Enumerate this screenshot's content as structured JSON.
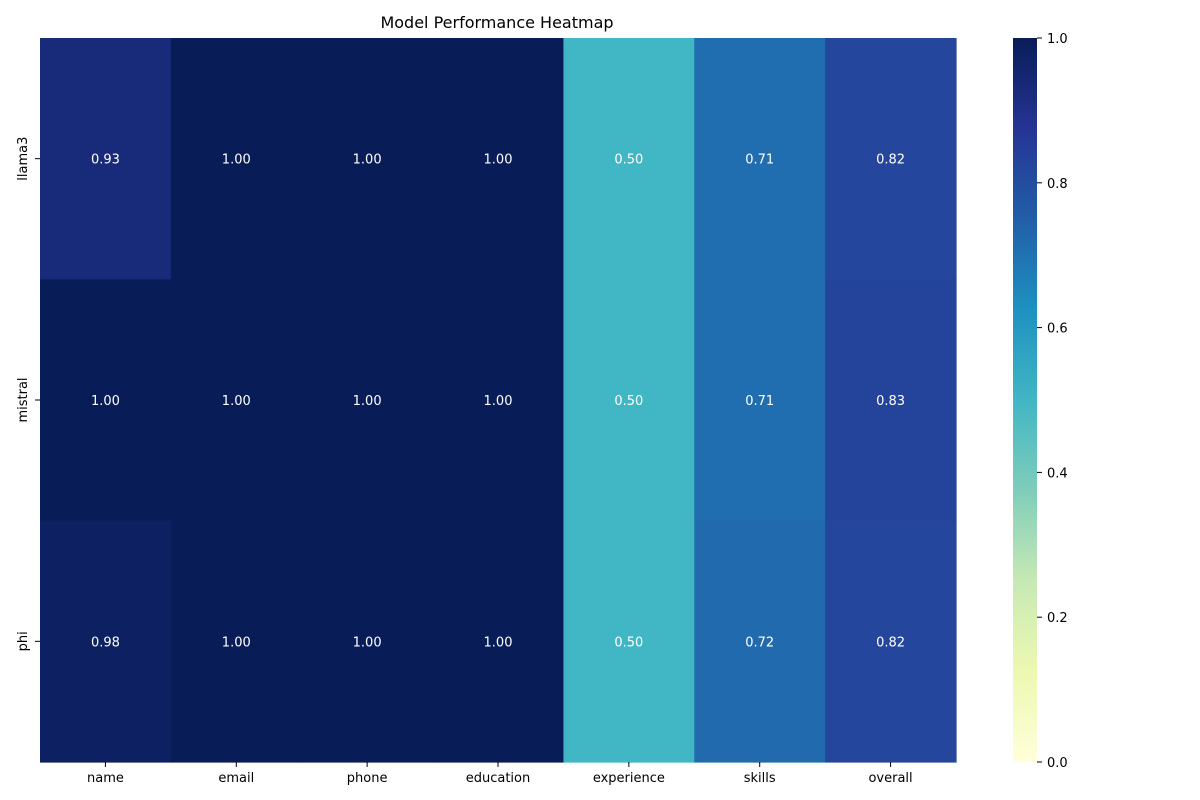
{
  "chart_data": {
    "type": "heatmap",
    "title": "Model Performance Heatmap",
    "xlabel": "",
    "ylabel": "",
    "x_categories": [
      "name",
      "email",
      "phone",
      "education",
      "experience",
      "skills",
      "overall"
    ],
    "y_categories": [
      "llama3",
      "mistral",
      "phi"
    ],
    "values": [
      [
        0.93,
        1.0,
        1.0,
        1.0,
        0.5,
        0.71,
        0.82
      ],
      [
        1.0,
        1.0,
        1.0,
        1.0,
        0.5,
        0.71,
        0.83
      ],
      [
        0.98,
        1.0,
        1.0,
        1.0,
        0.5,
        0.72,
        0.82
      ]
    ],
    "value_labels": [
      [
        "0.93",
        "1.00",
        "1.00",
        "1.00",
        "0.50",
        "0.71",
        "0.82"
      ],
      [
        "1.00",
        "1.00",
        "1.00",
        "1.00",
        "0.50",
        "0.71",
        "0.83"
      ],
      [
        "0.98",
        "1.00",
        "1.00",
        "1.00",
        "0.50",
        "0.72",
        "0.82"
      ]
    ],
    "colormap": "YlGnBu",
    "vmin": 0.0,
    "vmax": 1.0,
    "colorbar_ticks": [
      "0.0",
      "0.2",
      "0.4",
      "0.6",
      "0.8",
      "1.0"
    ],
    "colorbar_tick_values": [
      0.0,
      0.2,
      0.4,
      0.6,
      0.8,
      1.0
    ],
    "colormap_stops": [
      {
        "v": 0.0,
        "c": "#ffffd9"
      },
      {
        "v": 0.125,
        "c": "#edf8b1"
      },
      {
        "v": 0.25,
        "c": "#c7e9b4"
      },
      {
        "v": 0.375,
        "c": "#7fcdbb"
      },
      {
        "v": 0.5,
        "c": "#41b6c4"
      },
      {
        "v": 0.625,
        "c": "#1d91c0"
      },
      {
        "v": 0.75,
        "c": "#225ea8"
      },
      {
        "v": 0.875,
        "c": "#253494"
      },
      {
        "v": 1.0,
        "c": "#081d58"
      }
    ],
    "annotation_color": "#ffffff",
    "grid": false,
    "legend": "colorbar-right"
  }
}
